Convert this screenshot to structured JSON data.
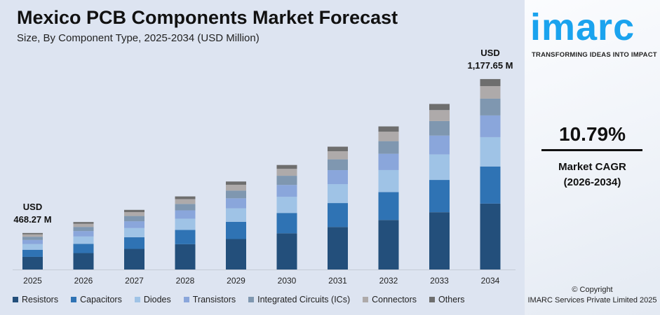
{
  "title": "Mexico PCB Components Market Forecast",
  "subtitle": "Size, By Component Type, 2025-2034 (USD Million)",
  "brand": {
    "logo": "imarc",
    "tagline": "TRANSFORMING IDEAS INTO IMPACT",
    "cagr_value": "10.79%",
    "cagr_label": "Market CAGR",
    "cagr_period": "(2026-2034)",
    "copyright": "© Copyright",
    "company": "IMARC Services Private Limited 2025"
  },
  "chart_data": {
    "type": "bar",
    "stacked": true,
    "categories": [
      "2025",
      "2026",
      "2027",
      "2028",
      "2029",
      "2030",
      "2031",
      "2032",
      "2033",
      "2034"
    ],
    "totals": [
      468.27,
      518.8,
      574.8,
      636.8,
      705.5,
      781.6,
      866.0,
      959.4,
      1062.9,
      1177.65
    ],
    "annotations": [
      {
        "category": "2025",
        "line1": "USD",
        "line2": "468.27 M"
      },
      {
        "category": "2034",
        "line1": "USD",
        "line2": "1,177.65 M"
      }
    ],
    "series": [
      {
        "name": "Resistors",
        "color": "#234f7b",
        "share": 0.346
      },
      {
        "name": "Capacitors",
        "color": "#2f73b4",
        "share": 0.195
      },
      {
        "name": "Diodes",
        "color": "#9fc3e6",
        "share": 0.154
      },
      {
        "name": "Transistors",
        "color": "#8aa6db",
        "share": 0.114
      },
      {
        "name": "Integrated Circuits (ICs)",
        "color": "#7f97b0",
        "share": 0.088
      },
      {
        "name": "Connectors",
        "color": "#aeaaaa",
        "share": 0.066
      },
      {
        "name": "Others",
        "color": "#6e6e6e",
        "share": 0.037
      }
    ],
    "legend_position": "bottom",
    "grid": false
  }
}
